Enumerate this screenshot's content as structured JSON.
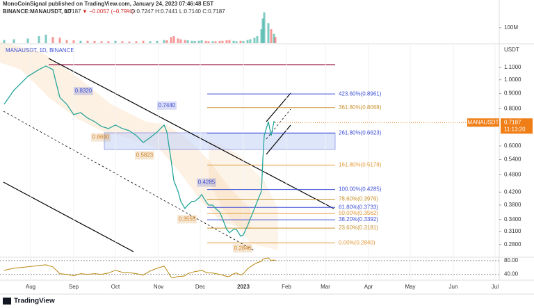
{
  "header": {
    "publisher": "MonoCoinSignal published on TradingView.com, January 24, 2023 07:46:48 EST",
    "symbol": "BINANCE:MANAUSDT, 1D",
    "last": "0.7187",
    "change": "▼ −0.0057 (−0.79%)",
    "ohlc": "O:0.7247 H:0.7441 L:0.7140 C:0.7187",
    "brand": "TradingView"
  },
  "chart_data": [
    {
      "type": "line",
      "title": "MANAUSDT, 1D, BINANCE",
      "y_unit": "USDT",
      "log_scale": true,
      "x": [
        12,
        19,
        29,
        37,
        42,
        47,
        52,
        57,
        62,
        67,
        72,
        77,
        82,
        87,
        92,
        97,
        102,
        107,
        112,
        117,
        122,
        127,
        129,
        132,
        134,
        137,
        139,
        142,
        144,
        147,
        149,
        152,
        154,
        157,
        159,
        162,
        164,
        167,
        169,
        172,
        174,
        177,
        179,
        182,
        184,
        187,
        189,
        192,
        194,
        197,
        198,
        199,
        202,
        204,
        206,
        207
      ],
      "series": [
        {
          "name": "MANAUSDT",
          "color": "#26a69a",
          "values": [
            0.828,
            0.922,
            1.026,
            1.082,
            1.112,
            1.082,
            0.873,
            0.828,
            0.764,
            0.776,
            0.744,
            0.724,
            0.697,
            0.686,
            0.705,
            0.686,
            0.675,
            0.65,
            0.616,
            0.64,
            0.668,
            0.705,
            0.668,
            0.539,
            0.459,
            0.423,
            0.391,
            0.37,
            0.38,
            0.391,
            0.391,
            0.401,
            0.412,
            0.391,
            0.38,
            0.38,
            0.37,
            0.36,
            0.342,
            0.315,
            0.307,
            0.315,
            0.315,
            0.299,
            0.302,
            0.324,
            0.342,
            0.37,
            0.391,
            0.423,
            0.539,
            0.65,
            0.724,
            0.65,
            0.724,
            0.7187
          ]
        }
      ],
      "last_price": 0.7187,
      "last_color": "#f07e16",
      "countdown": "11:13:20",
      "xlim": [
        9,
        368
      ],
      "xticks": [
        {
          "value": 31,
          "label": "Aug"
        },
        {
          "value": 62,
          "label": "Sep"
        },
        {
          "value": 92,
          "label": "Oct"
        },
        {
          "value": 123,
          "label": "Nov"
        },
        {
          "value": 153,
          "label": "Dec"
        },
        {
          "value": 184,
          "label": "2023"
        },
        {
          "value": 215,
          "label": "Feb"
        },
        {
          "value": 243,
          "label": "Mar"
        },
        {
          "value": 274,
          "label": "Apr"
        },
        {
          "value": 304,
          "label": "May"
        },
        {
          "value": 335,
          "label": "Jun"
        },
        {
          "value": 365,
          "label": "Jul"
        }
      ],
      "ylim": [
        0.254,
        1.306
      ],
      "yticks": [
        {
          "value": 1.1,
          "label": "1.1000"
        },
        {
          "value": 1.0,
          "label": "1.0000"
        },
        {
          "value": 0.9,
          "label": "0.9000"
        },
        {
          "value": 0.8,
          "label": "0.8000"
        },
        {
          "value": 0.6,
          "label": "0.6000"
        },
        {
          "value": 0.54,
          "label": "0.5400"
        },
        {
          "value": 0.48,
          "label": "0.4800"
        },
        {
          "value": 0.42,
          "label": "0.4200"
        },
        {
          "value": 0.38,
          "label": "0.3800"
        },
        {
          "value": 0.34,
          "label": "0.3400"
        },
        {
          "value": 0.31,
          "label": "0.3100"
        },
        {
          "value": 0.28,
          "label": "0.2800"
        }
      ],
      "fib_levels": [
        {
          "value": 0.8961,
          "label": "423.60%(0.8961)",
          "color": "#3f51d8"
        },
        {
          "value": 0.8068,
          "label": "361.80%(0.8068)",
          "color": "#c9922e"
        },
        {
          "value": 0.6623,
          "label": "261.80%(0.6623)",
          "color": "#3f51d8"
        },
        {
          "value": 0.5178,
          "label": "161.80%(0.5178)",
          "color": "#e39a3b"
        },
        {
          "value": 0.4285,
          "label": "100.00%(0.4285)",
          "color": "#3f51d8"
        },
        {
          "value": 0.3976,
          "label": "78.60%(0.3976)",
          "color": "#c9922e"
        },
        {
          "value": 0.3733,
          "label": "61.80%(0.3733)",
          "color": "#3f51d8"
        },
        {
          "value": 0.3562,
          "label": "50.00%(0.3562)",
          "color": "#e39a3b"
        },
        {
          "value": 0.3392,
          "label": "38.20%(0.3392)",
          "color": "#3f51d8"
        },
        {
          "value": 0.3181,
          "label": "23.60%(0.3181)",
          "color": "#c9922e"
        },
        {
          "value": 0.284,
          "label": "0.00%(0.2840)",
          "color": "#e39a3b"
        }
      ],
      "price_notes": [
        {
          "value": 0.832,
          "label": "0.8320",
          "color": "#3f51d8"
        },
        {
          "value": 0.744,
          "label": "0.7440",
          "color": "#3f51d8"
        },
        {
          "value": 0.669,
          "label": "0.6690",
          "color": "#d2862a"
        },
        {
          "value": 0.5823,
          "label": "0.5823",
          "color": "#d2862a"
        },
        {
          "value": 0.4285,
          "label": "0.4285",
          "color": "#3f51d8"
        },
        {
          "value": 0.3555,
          "label": "0.3555",
          "color": "#d2862a"
        },
        {
          "value": 0.284,
          "label": "0.2840",
          "color": "#d2862a"
        }
      ]
    },
    {
      "type": "bar",
      "x": [
        12,
        19,
        29,
        37,
        42,
        47,
        52,
        57,
        62,
        67,
        72,
        77,
        82,
        87,
        92,
        97,
        102,
        107,
        112,
        117,
        122,
        127,
        129,
        132,
        134,
        137,
        139,
        142,
        144,
        147,
        149,
        152,
        154,
        157,
        159,
        162,
        164,
        167,
        169,
        172,
        174,
        177,
        179,
        182,
        184,
        187,
        189,
        192,
        194,
        197,
        198,
        199,
        202,
        204,
        206,
        207
      ],
      "values": [
        20000000,
        25000000,
        30000000,
        45000000,
        55000000,
        40000000,
        35000000,
        20000000,
        18000000,
        15000000,
        15000000,
        14000000,
        12000000,
        12000000,
        15000000,
        12000000,
        10000000,
        12000000,
        15000000,
        12000000,
        14000000,
        20000000,
        18000000,
        40000000,
        45000000,
        30000000,
        25000000,
        20000000,
        18000000,
        15000000,
        14000000,
        15000000,
        18000000,
        14000000,
        12000000,
        12000000,
        12000000,
        14000000,
        15000000,
        18000000,
        20000000,
        15000000,
        12000000,
        15000000,
        14000000,
        20000000,
        25000000,
        35000000,
        45000000,
        90000000,
        160000000,
        200000000,
        130000000,
        90000000,
        60000000,
        40000000
      ],
      "ylim": [
        0,
        280000000
      ],
      "yticks": [
        {
          "value": 100000000,
          "label": "100M"
        }
      ]
    },
    {
      "type": "line",
      "color": "#b8860b",
      "x": [
        12,
        19,
        29,
        37,
        42,
        47,
        52,
        57,
        62,
        67,
        72,
        77,
        82,
        87,
        92,
        97,
        102,
        107,
        112,
        117,
        122,
        127,
        129,
        132,
        134,
        137,
        139,
        142,
        144,
        147,
        149,
        152,
        154,
        157,
        159,
        162,
        164,
        167,
        169,
        172,
        174,
        177,
        179,
        182,
        184,
        187,
        189,
        192,
        194,
        197,
        198,
        199,
        202,
        204,
        206,
        207
      ],
      "values": [
        52,
        58,
        62,
        66,
        68,
        62,
        42,
        40,
        36,
        42,
        40,
        42,
        40,
        44,
        52,
        46,
        45,
        42,
        38,
        50,
        58,
        64,
        52,
        32,
        30,
        34,
        34,
        36,
        42,
        46,
        48,
        50,
        52,
        46,
        44,
        44,
        42,
        40,
        38,
        34,
        34,
        42,
        44,
        38,
        42,
        56,
        62,
        70,
        74,
        78,
        84,
        86,
        88,
        80,
        82,
        80
      ],
      "ylim": [
        23,
        90
      ],
      "yticks": [
        {
          "value": 80,
          "label": "80.00"
        },
        {
          "value": 40,
          "label": "40.00"
        }
      ]
    }
  ]
}
